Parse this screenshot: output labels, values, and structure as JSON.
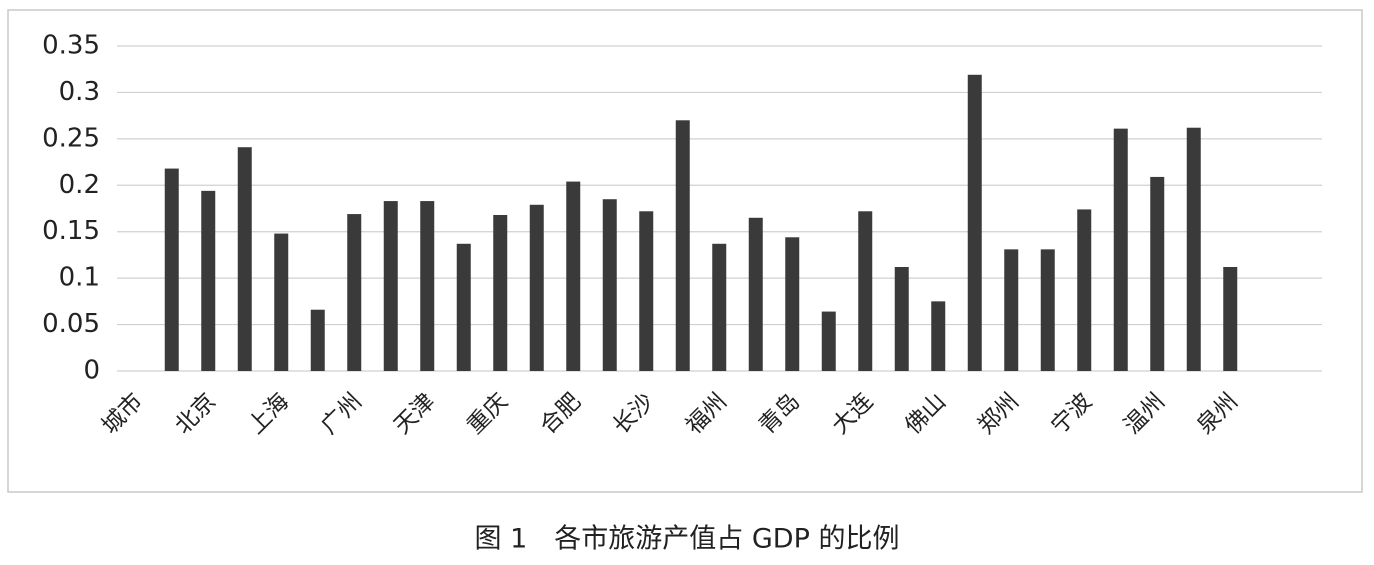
{
  "chart_data": {
    "type": "bar",
    "title": "图 1　各市旅游产值占 GDP 的比例",
    "categories": [
      "城市",
      null,
      "北京",
      null,
      "上海",
      null,
      "广州",
      null,
      "天津",
      null,
      "重庆",
      null,
      "合肥",
      null,
      "长沙",
      null,
      "福州",
      null,
      "青岛",
      null,
      "大连",
      null,
      "佛山",
      null,
      "郑州",
      null,
      "宁波",
      null,
      "温州",
      null,
      "泉州"
    ],
    "values": [
      null,
      0.218,
      0.194,
      0.241,
      0.148,
      0.066,
      0.169,
      0.183,
      0.183,
      0.137,
      0.168,
      0.179,
      0.204,
      0.185,
      0.172,
      0.27,
      0.137,
      0.165,
      0.144,
      0.064,
      0.172,
      0.112,
      0.075,
      0.319,
      0.131,
      0.131,
      0.174,
      0.261,
      0.209,
      0.262,
      0.112
    ],
    "color": "#3a3a3a",
    "ylim": [
      0,
      0.35
    ],
    "yticks": [
      0,
      0.05,
      0.1,
      0.15,
      0.2,
      0.25,
      0.3,
      0.35
    ],
    "grid": true
  }
}
